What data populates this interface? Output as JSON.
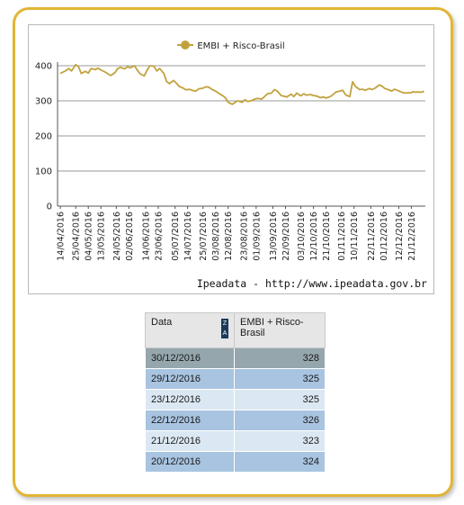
{
  "chart_data": {
    "type": "line",
    "title": "",
    "xlabel": "",
    "ylabel": "",
    "ylim": [
      0,
      400
    ],
    "yticks": [
      0,
      100,
      200,
      300,
      400
    ],
    "grid": true,
    "legend_position": "top-center",
    "series": [
      {
        "name": "EMBI + Risco-Brasil",
        "color": "#c2a23e",
        "points": [
          [
            "2016-04-14",
            378
          ],
          [
            "2016-04-18",
            386
          ],
          [
            "2016-04-20",
            392
          ],
          [
            "2016-04-22",
            385
          ],
          [
            "2016-04-25",
            403
          ],
          [
            "2016-04-27",
            397
          ],
          [
            "2016-04-29",
            378
          ],
          [
            "2016-05-02",
            384
          ],
          [
            "2016-05-04",
            379
          ],
          [
            "2016-05-06",
            392
          ],
          [
            "2016-05-09",
            389
          ],
          [
            "2016-05-11",
            393
          ],
          [
            "2016-05-13",
            388
          ],
          [
            "2016-05-16",
            382
          ],
          [
            "2016-05-18",
            377
          ],
          [
            "2016-05-20",
            372
          ],
          [
            "2016-05-23",
            380
          ],
          [
            "2016-05-25",
            392
          ],
          [
            "2016-05-27",
            395
          ],
          [
            "2016-05-30",
            391
          ],
          [
            "2016-06-01",
            397
          ],
          [
            "2016-06-03",
            394
          ],
          [
            "2016-06-06",
            400
          ],
          [
            "2016-06-08",
            388
          ],
          [
            "2016-06-10",
            377
          ],
          [
            "2016-06-13",
            371
          ],
          [
            "2016-06-15",
            387
          ],
          [
            "2016-06-17",
            400
          ],
          [
            "2016-06-20",
            398
          ],
          [
            "2016-06-22",
            385
          ],
          [
            "2016-06-24",
            392
          ],
          [
            "2016-06-27",
            378
          ],
          [
            "2016-06-29",
            355
          ],
          [
            "2016-07-01",
            349
          ],
          [
            "2016-07-04",
            358
          ],
          [
            "2016-07-06",
            350
          ],
          [
            "2016-07-08",
            341
          ],
          [
            "2016-07-11",
            336
          ],
          [
            "2016-07-13",
            331
          ],
          [
            "2016-07-15",
            333
          ],
          [
            "2016-07-18",
            329
          ],
          [
            "2016-07-20",
            328
          ],
          [
            "2016-07-22",
            334
          ],
          [
            "2016-07-25",
            336
          ],
          [
            "2016-07-27",
            340
          ],
          [
            "2016-07-29",
            339
          ],
          [
            "2016-08-01",
            331
          ],
          [
            "2016-08-03",
            328
          ],
          [
            "2016-08-05",
            322
          ],
          [
            "2016-08-08",
            315
          ],
          [
            "2016-08-10",
            309
          ],
          [
            "2016-08-12",
            296
          ],
          [
            "2016-08-15",
            290
          ],
          [
            "2016-08-17",
            296
          ],
          [
            "2016-08-19",
            300
          ],
          [
            "2016-08-22",
            296
          ],
          [
            "2016-08-24",
            303
          ],
          [
            "2016-08-26",
            298
          ],
          [
            "2016-08-29",
            301
          ],
          [
            "2016-08-31",
            305
          ],
          [
            "2016-09-02",
            307
          ],
          [
            "2016-09-05",
            305
          ],
          [
            "2016-09-07",
            312
          ],
          [
            "2016-09-09",
            320
          ],
          [
            "2016-09-12",
            322
          ],
          [
            "2016-09-14",
            332
          ],
          [
            "2016-09-16",
            328
          ],
          [
            "2016-09-19",
            315
          ],
          [
            "2016-09-21",
            313
          ],
          [
            "2016-09-23",
            311
          ],
          [
            "2016-09-26",
            319
          ],
          [
            "2016-09-28",
            312
          ],
          [
            "2016-09-30",
            322
          ],
          [
            "2016-10-03",
            314
          ],
          [
            "2016-10-05",
            320
          ],
          [
            "2016-10-07",
            316
          ],
          [
            "2016-10-10",
            318
          ],
          [
            "2016-10-12",
            315
          ],
          [
            "2016-10-14",
            314
          ],
          [
            "2016-10-17",
            309
          ],
          [
            "2016-10-19",
            311
          ],
          [
            "2016-10-21",
            308
          ],
          [
            "2016-10-24",
            312
          ],
          [
            "2016-10-26",
            318
          ],
          [
            "2016-10-28",
            325
          ],
          [
            "2016-10-31",
            328
          ],
          [
            "2016-11-02",
            330
          ],
          [
            "2016-11-04",
            317
          ],
          [
            "2016-11-07",
            312
          ],
          [
            "2016-11-09",
            354
          ],
          [
            "2016-11-11",
            341
          ],
          [
            "2016-11-14",
            332
          ],
          [
            "2016-11-16",
            333
          ],
          [
            "2016-11-18",
            330
          ],
          [
            "2016-11-21",
            335
          ],
          [
            "2016-11-23",
            332
          ],
          [
            "2016-11-25",
            336
          ],
          [
            "2016-11-28",
            345
          ],
          [
            "2016-11-30",
            342
          ],
          [
            "2016-12-02",
            335
          ],
          [
            "2016-12-05",
            331
          ],
          [
            "2016-12-07",
            328
          ],
          [
            "2016-12-09",
            333
          ],
          [
            "2016-12-12",
            328
          ],
          [
            "2016-12-14",
            325
          ],
          [
            "2016-12-16",
            322
          ],
          [
            "2016-12-19",
            323
          ],
          [
            "2016-12-21",
            323
          ],
          [
            "2016-12-22",
            326
          ],
          [
            "2016-12-23",
            325
          ],
          [
            "2016-12-29",
            325
          ],
          [
            "2016-12-30",
            328
          ]
        ]
      }
    ],
    "x_tick_labels": [
      "14/04/2016",
      "25/04/2016",
      "04/05/2016",
      "13/05/2016",
      "24/05/2016",
      "02/06/2016",
      "14/06/2016",
      "23/06/2016",
      "05/07/2016",
      "14/07/2016",
      "25/07/2016",
      "03/08/2016",
      "12/08/2016",
      "23/08/2016",
      "01/09/2016",
      "13/09/2016",
      "22/09/2016",
      "03/10/2016",
      "12/10/2016",
      "21/10/2016",
      "01/11/2016",
      "10/11/2016",
      "22/11/2016",
      "01/12/2016",
      "12/12/2016",
      "21/12/2016"
    ],
    "x_range": [
      "2016-04-12",
      "2016-12-31"
    ]
  },
  "source_text": "Ipeadata - http://www.ipeadata.gov.br",
  "table": {
    "headers": [
      "Data",
      "EMBI + Risco-Brasil"
    ],
    "sort_icon_text": [
      "Z",
      "A"
    ],
    "rows": [
      {
        "date": "30/12/2016",
        "value": "328"
      },
      {
        "date": "29/12/2016",
        "value": "325"
      },
      {
        "date": "23/12/2016",
        "value": "325"
      },
      {
        "date": "22/12/2016",
        "value": "326"
      },
      {
        "date": "21/12/2016",
        "value": "323"
      },
      {
        "date": "20/12/2016",
        "value": "324"
      }
    ]
  }
}
